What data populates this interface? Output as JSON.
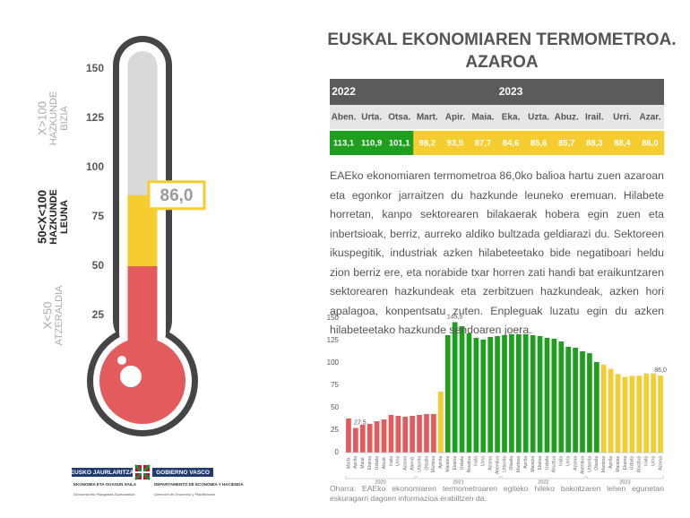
{
  "title": [
    "EUSKAL EKONOMIAREN TERMOMETROA.",
    "AZAROA"
  ],
  "thermometer": {
    "value": 86.0,
    "value_label": "86,0",
    "ylim": [
      0,
      150
    ],
    "yticks": [
      25,
      50,
      75,
      100,
      125,
      150
    ],
    "zones": [
      {
        "from": 0,
        "to": 50,
        "color": "#e35b5d",
        "lines": [
          "X<50",
          "ATZERALDIA"
        ]
      },
      {
        "from": 50,
        "to": 100,
        "color": "#f6cd30",
        "lines": [
          "50<X<100",
          "HAZKUNDE",
          "LEUNA"
        ]
      },
      {
        "from": 100,
        "to": 150,
        "color": "#1ea01e",
        "lines": [
          "X>100",
          "HAZKUNDE",
          "BIZIA"
        ]
      }
    ]
  },
  "table": {
    "header": [
      {
        "label": "2022",
        "span": 1
      },
      {
        "label": "2023",
        "span": 11
      }
    ],
    "months": [
      "Aben.",
      "Urta.",
      "Otsa.",
      "Mart.",
      "Apir.",
      "Maia.",
      "Eka.",
      "Uzta.",
      "Abuz.",
      "Irail.",
      "Urri.",
      "Azar."
    ],
    "values": [
      113.1,
      110.9,
      101.1,
      98.2,
      93.5,
      87.7,
      84.6,
      85.6,
      85.7,
      88.3,
      88.4,
      86.0
    ],
    "value_labels": [
      "113,1",
      "110,9",
      "101,1",
      "98,2",
      "93,5",
      "87,7",
      "84,6",
      "85,6",
      "85,7",
      "88,3",
      "88,4",
      "86,0"
    ]
  },
  "text": "EAEko ekonomiaren termometroa 86,0ko balioa hartu zuen azaroan eta egonkor jarraitzen du hazkunde leuneko eremuan. Hilabete horretan, kanpo sektorearen bilakaerak hobera egin zuen eta inbertsioak, berriz, aurreko aldiko bultzada geldiarazi du. Sektoreen ikuspegitik, industriak azken hilabeteetako bide negatiboari heldu zion berriz ere, eta norabide txar horren zati handi bat eraikuntzaren sektorearen hazkundeak eta zerbitzuen hazkundeak, azken hori apalagoa, konpentsatu zuten. Enpleguak luzatu egin du azken hilabeteetako hazkunde sendoaren joera.",
  "chart_data": {
    "type": "bar",
    "categories": [
      "Martx.",
      "Apirila",
      "Maiat.",
      "Ekaina",
      "Uztaila",
      "Abuzt.",
      "Iraila",
      "Urria",
      "Azaroa",
      "Abend.",
      "Urtarrila",
      "Otsaila",
      "Martxoa",
      "Apirila",
      "Maiatza",
      "Ekaina",
      "Uztaila",
      "Abuztua",
      "Iraila",
      "Urria",
      "Azaroa",
      "Abendua",
      "Urtarrila",
      "Otsaila",
      "Martxoa",
      "Apirila",
      "Maiatza",
      "Ekaina",
      "Uztaila",
      "Abuztua",
      "Iraila",
      "Urria",
      "Azaroa",
      "Abendua",
      "Urtarrila",
      "Otsaila",
      "Martxoa",
      "Apirila",
      "Maiatza",
      "Ekaina",
      "Uztaila",
      "Abuztua",
      "Iraila",
      "Urria",
      "Azaroa"
    ],
    "values": [
      38,
      27.5,
      31,
      32,
      35,
      37,
      42,
      41,
      40,
      41,
      42,
      43,
      43,
      68,
      131,
      145.5,
      141,
      133,
      128,
      126,
      129,
      130,
      131,
      132,
      132,
      132,
      131,
      130,
      128,
      127,
      124,
      118,
      117,
      113.1,
      110.9,
      101.1,
      98.2,
      93.5,
      87.7,
      84.6,
      85.6,
      85.7,
      88.3,
      88.4,
      86.0
    ],
    "value_labels": [
      null,
      "27,5",
      null,
      null,
      null,
      null,
      null,
      null,
      null,
      null,
      null,
      null,
      null,
      null,
      null,
      "145,5",
      null,
      null,
      null,
      null,
      null,
      null,
      null,
      null,
      null,
      null,
      null,
      null,
      null,
      null,
      null,
      null,
      null,
      null,
      null,
      null,
      null,
      null,
      null,
      null,
      null,
      null,
      null,
      null,
      "86,0"
    ],
    "years": [
      "2020",
      "2021",
      "2022",
      "2023"
    ],
    "ylim": [
      0,
      150
    ],
    "yticks": [
      0,
      25,
      50,
      75,
      100,
      125,
      150
    ],
    "note": "Oharra: EAEko ekonomiaren termometroaren egiteko hileko bakoitzaren lehen egunetan eskuragarri dagoen informazioa erabiltzen da."
  },
  "logo": {
    "left": "EUSKO JAURLARITZA",
    "right": "GOBIERNO VASCO",
    "dept_eu": "EKONOMIA ETA OGASUN SAILA",
    "dir_eu": "Ekonomia eta Plangintza Zuzendaritza",
    "dept_es": "DEPARTAMENTO DE ECONOMÍA Y HACIENDA",
    "dir_es": "Dirección de Economía y Planificación"
  }
}
